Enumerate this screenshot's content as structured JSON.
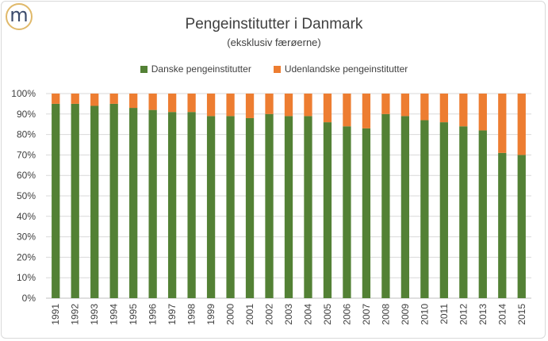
{
  "logo": {
    "letter": "m",
    "icon": "m-logo-icon"
  },
  "chart_data": {
    "type": "bar",
    "stacked": true,
    "title": "Pengeinstitutter i Danmark",
    "subtitle": "(eksklusiv færøerne)",
    "legend_position": "top",
    "categories": [
      "1991",
      "1992",
      "1993",
      "1994",
      "1995",
      "1996",
      "1997",
      "1998",
      "1999",
      "2000",
      "2001",
      "2002",
      "2003",
      "2004",
      "2005",
      "2006",
      "2007",
      "2008",
      "2009",
      "2010",
      "2011",
      "2012",
      "2013",
      "2014",
      "2015"
    ],
    "series": [
      {
        "name": "Danske pengeinstitutter",
        "color": "#538135",
        "values": [
          95,
          95,
          94,
          95,
          93,
          92,
          91,
          91,
          89,
          89,
          88,
          90,
          89,
          89,
          86,
          84,
          83,
          90,
          89,
          87,
          86,
          84,
          82,
          71,
          70
        ]
      },
      {
        "name": "Udenlandske pengeinstitutter",
        "color": "#ed7d31",
        "values": [
          5,
          5,
          6,
          5,
          7,
          8,
          9,
          9,
          11,
          11,
          12,
          10,
          11,
          11,
          14,
          16,
          17,
          10,
          11,
          13,
          14,
          16,
          18,
          29,
          30
        ]
      }
    ],
    "y_ticks": [
      "0%",
      "10%",
      "20%",
      "30%",
      "40%",
      "50%",
      "60%",
      "70%",
      "80%",
      "90%",
      "100%"
    ],
    "ylim": [
      0,
      100
    ],
    "grid": true
  }
}
